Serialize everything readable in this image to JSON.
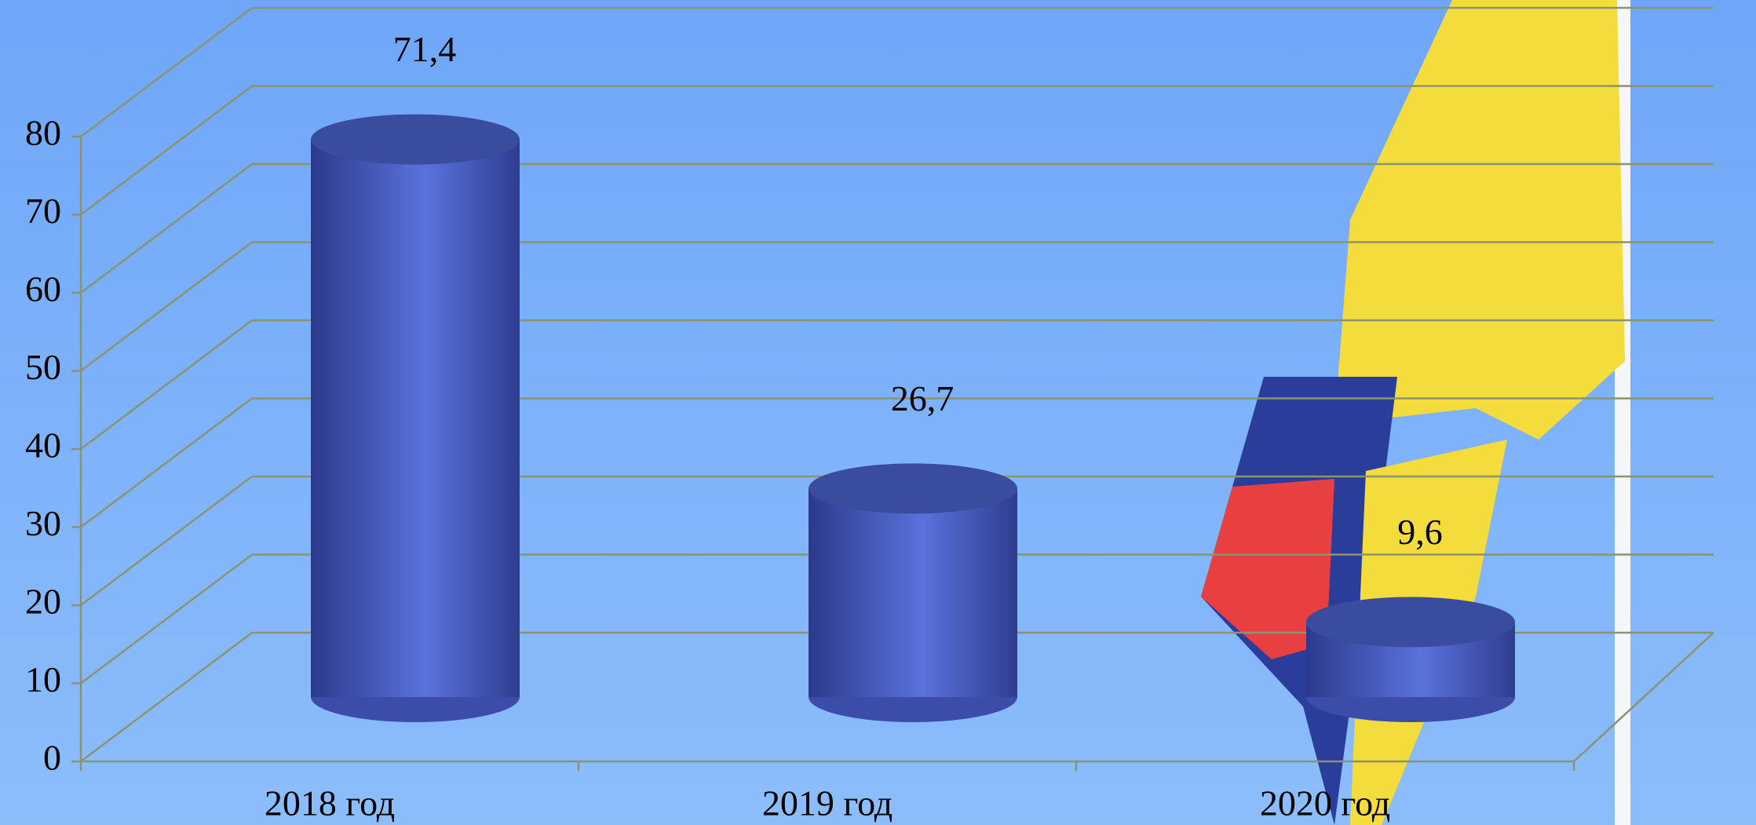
{
  "chart_data": {
    "type": "bar",
    "categories": [
      "2018 год",
      "2019 год",
      "2020 год"
    ],
    "values": [
      71.4,
      26.7,
      9.6
    ],
    "value_labels": [
      "71,4",
      "26,7",
      "9,6"
    ],
    "color": "#4a5fc8",
    "ylim": [
      0,
      80
    ],
    "yticks": [
      0,
      10,
      20,
      30,
      40,
      50,
      60,
      70,
      80
    ],
    "grid": true
  }
}
